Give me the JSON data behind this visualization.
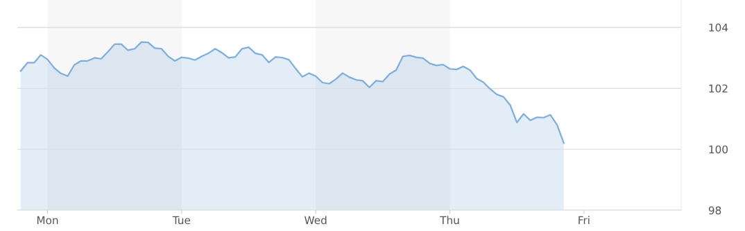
{
  "chart_data": {
    "type": "area",
    "categories": [
      null,
      null,
      null,
      null,
      "Mon",
      null,
      null,
      null,
      null,
      null,
      null,
      null,
      null,
      null,
      null,
      null,
      null,
      null,
      null,
      null,
      null,
      null,
      null,
      null,
      "Tue",
      null,
      null,
      null,
      null,
      null,
      null,
      null,
      null,
      null,
      null,
      null,
      null,
      null,
      null,
      null,
      null,
      null,
      null,
      null,
      "Wed",
      null,
      null,
      null,
      null,
      null,
      null,
      null,
      null,
      null,
      null,
      null,
      null,
      null,
      null,
      null,
      null,
      null,
      null,
      null,
      "Thu",
      null,
      null,
      null,
      null,
      null,
      null,
      null,
      null,
      null,
      null,
      null,
      null,
      null,
      null,
      null,
      null,
      null,
      null,
      null,
      "Fri",
      null,
      null,
      null,
      null,
      null,
      null,
      null,
      null,
      null,
      null,
      null,
      null,
      null,
      null
    ],
    "ylim": [
      98,
      104.9
    ],
    "yticks": [
      98,
      100,
      102,
      104
    ],
    "grid": "y",
    "bands": [
      {
        "axis": "x",
        "from": "Mon",
        "to": "Tue",
        "color": "#f7f7f7"
      },
      {
        "axis": "x",
        "from": "Wed",
        "to": "Thu",
        "color": "#f7f7f7"
      }
    ],
    "series": [
      {
        "color": "#7eaedc",
        "values": [
          102.57,
          102.84,
          102.84,
          103.1,
          102.95,
          102.67,
          102.49,
          102.4,
          102.77,
          102.9,
          102.9,
          103.0,
          102.97,
          103.2,
          103.45,
          103.45,
          103.25,
          103.3,
          103.52,
          103.51,
          103.32,
          103.3,
          103.05,
          102.9,
          103.02,
          102.99,
          102.93,
          103.05,
          103.15,
          103.3,
          103.17,
          103.0,
          103.03,
          103.3,
          103.35,
          103.15,
          103.1,
          102.85,
          103.03,
          103.01,
          102.94,
          102.65,
          102.38,
          102.5,
          102.4,
          102.19,
          102.15,
          102.3,
          102.5,
          102.37,
          102.28,
          102.25,
          102.03,
          102.25,
          102.22,
          102.47,
          102.6,
          103.05,
          103.08,
          103.02,
          102.99,
          102.82,
          102.75,
          102.78,
          102.64,
          102.62,
          102.72,
          102.6,
          102.32,
          102.2,
          101.98,
          101.8,
          101.72,
          101.45,
          100.88,
          101.16,
          100.95,
          101.05,
          101.04,
          101.13,
          100.8,
          100.2,
          null,
          null,
          null,
          null,
          null,
          null,
          null,
          null,
          null,
          null,
          null,
          null,
          null,
          null,
          null,
          null,
          null
        ]
      }
    ]
  }
}
